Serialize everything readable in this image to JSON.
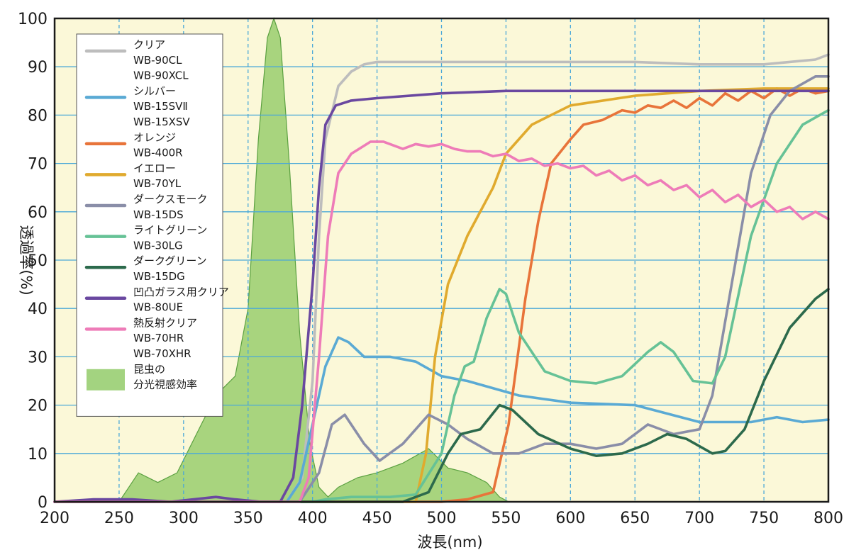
{
  "chart_data": {
    "type": "line",
    "xlabel": "波長(nm)",
    "ylabel": "透過率(%)",
    "xlim": [
      200,
      800
    ],
    "ylim": [
      0,
      100
    ],
    "xticks": [
      200,
      250,
      300,
      350,
      400,
      450,
      500,
      550,
      600,
      650,
      700,
      750,
      800
    ],
    "yticks": [
      0,
      10,
      20,
      30,
      40,
      50,
      60,
      70,
      80,
      90,
      100
    ],
    "grid": true,
    "legend_position": "top-left",
    "background_color": "#fbf8d8",
    "grid_color": "#4aa8d8",
    "area": {
      "name": [
        "昆虫の",
        "分光視感効率"
      ],
      "color": "#8cc860",
      "x": [
        200,
        250,
        255,
        265,
        280,
        295,
        310,
        325,
        340,
        350,
        358,
        365,
        370,
        375,
        382,
        390,
        398,
        405,
        412,
        420,
        435,
        450,
        470,
        490,
        505,
        520,
        535,
        545,
        552,
        560,
        800
      ],
      "y": [
        0,
        0,
        2,
        6,
        4,
        6,
        14,
        22,
        26,
        40,
        75,
        96,
        100,
        96,
        70,
        35,
        12,
        3,
        1,
        3,
        5,
        6,
        8,
        11,
        7,
        6,
        4,
        1,
        0,
        0,
        0
      ]
    },
    "series": [
      {
        "name": [
          "クリア",
          "WB-90CL",
          "WB-90XCL"
        ],
        "color": "#bdbdbd",
        "x": [
          200,
          380,
          392,
          400,
          405,
          410,
          420,
          430,
          440,
          450,
          480,
          550,
          650,
          700,
          750,
          790,
          800
        ],
        "y": [
          0,
          0,
          5,
          25,
          55,
          75,
          86,
          89,
          90.5,
          91,
          91,
          91,
          91,
          90.5,
          90.5,
          91.5,
          92.5
        ]
      },
      {
        "name": [
          "シルバー",
          "WB-15SVⅡ",
          "WB-15XSV"
        ],
        "color": "#5aaad4",
        "x": [
          200,
          380,
          390,
          400,
          410,
          420,
          428,
          440,
          460,
          480,
          500,
          520,
          560,
          600,
          650,
          700,
          740,
          760,
          780,
          800
        ],
        "y": [
          0,
          0,
          4,
          16,
          28,
          34,
          33,
          30,
          30,
          29,
          26,
          25,
          22,
          20.5,
          20,
          16.5,
          16.5,
          17.5,
          16.5,
          17
        ]
      },
      {
        "name": [
          "オレンジ",
          "WB-400R"
        ],
        "color": "#e8743a",
        "x": [
          200,
          500,
          520,
          540,
          552,
          565,
          575,
          585,
          600,
          610,
          625,
          640,
          650,
          660,
          670,
          680,
          690,
          700,
          710,
          720,
          730,
          740,
          750,
          760,
          770,
          780,
          790,
          800
        ],
        "y": [
          0,
          0,
          0.5,
          2,
          16,
          42,
          58,
          70,
          75,
          78,
          79,
          81,
          80.5,
          82,
          81.5,
          83,
          81.5,
          83.5,
          82,
          84.5,
          83,
          85,
          83.5,
          85.5,
          84,
          85.5,
          84.5,
          85
        ]
      },
      {
        "name": [
          "イエロー",
          "WB-70YL"
        ],
        "color": "#e0aa2e",
        "x": [
          200,
          480,
          488,
          495,
          505,
          520,
          540,
          550,
          570,
          600,
          650,
          700,
          750,
          800
        ],
        "y": [
          0,
          0,
          10,
          30,
          45,
          55,
          65,
          72,
          78,
          82,
          84,
          85,
          85.5,
          85.5
        ]
      },
      {
        "name": [
          "ダークスモーク",
          "WB-15DS"
        ],
        "color": "#8a8ea8",
        "x": [
          200,
          390,
          405,
          415,
          425,
          440,
          452,
          470,
          490,
          505,
          520,
          540,
          560,
          580,
          600,
          620,
          640,
          660,
          680,
          700,
          710,
          725,
          740,
          755,
          770,
          790,
          800
        ],
        "y": [
          0,
          0,
          6,
          16,
          18,
          12,
          8.5,
          12,
          18,
          16,
          13,
          10,
          10,
          12,
          12,
          11,
          12,
          16,
          14,
          15,
          22,
          45,
          68,
          80,
          85,
          88,
          88
        ]
      },
      {
        "name": [
          "ライトグリーン",
          "WB-30LG"
        ],
        "color": "#66c296",
        "x": [
          200,
          400,
          410,
          430,
          460,
          480,
          500,
          510,
          518,
          525,
          535,
          545,
          550,
          560,
          580,
          600,
          620,
          640,
          660,
          670,
          680,
          695,
          710,
          720,
          740,
          760,
          780,
          800
        ],
        "y": [
          0,
          0,
          0.5,
          1,
          1,
          1.5,
          10,
          22,
          28,
          29,
          38,
          44,
          43,
          35,
          27,
          25,
          24.5,
          26,
          31,
          33,
          31,
          25,
          24.5,
          30,
          55,
          70,
          78,
          81
        ]
      },
      {
        "name": [
          "ダークグリーン",
          "WB-15DG"
        ],
        "color": "#2c6a4c",
        "x": [
          200,
          470,
          490,
          505,
          515,
          530,
          545,
          555,
          575,
          600,
          620,
          640,
          660,
          675,
          690,
          710,
          720,
          735,
          750,
          770,
          790,
          800
        ],
        "y": [
          0,
          0,
          2,
          10,
          14,
          15,
          20,
          19,
          14,
          11,
          9.5,
          10,
          12,
          14,
          13,
          10,
          10.5,
          15,
          25,
          36,
          42,
          44
        ]
      },
      {
        "name": [
          "凹凸ガラス用クリア",
          "WB-80UE"
        ],
        "color": "#6a48a0",
        "x": [
          200,
          230,
          260,
          290,
          325,
          340,
          360,
          375,
          385,
          392,
          400,
          405,
          410,
          418,
          430,
          450,
          500,
          550,
          600,
          650,
          700,
          750,
          800
        ],
        "y": [
          0,
          0.5,
          0.5,
          0,
          1,
          0.5,
          0,
          0,
          5,
          20,
          45,
          65,
          78,
          82,
          83,
          83.5,
          84.5,
          85,
          85,
          85,
          85,
          85,
          85
        ]
      },
      {
        "name": [
          "熱反射クリア",
          "WB-70HR",
          "WB-70XHR"
        ],
        "color": "#ee7cb8",
        "x": [
          200,
          390,
          397,
          405,
          412,
          420,
          430,
          445,
          455,
          470,
          480,
          490,
          500,
          510,
          520,
          530,
          540,
          550,
          560,
          570,
          580,
          590,
          600,
          610,
          620,
          630,
          640,
          650,
          660,
          670,
          680,
          690,
          700,
          710,
          720,
          730,
          740,
          750,
          760,
          770,
          780,
          790,
          800
        ],
        "y": [
          0,
          0,
          5,
          30,
          55,
          68,
          72,
          74.5,
          74.5,
          73,
          74,
          73.5,
          74,
          73,
          72.5,
          72.5,
          71.5,
          72,
          70.5,
          71,
          69.5,
          70,
          69,
          69.5,
          67.5,
          68.5,
          66.5,
          67.5,
          65.5,
          66.5,
          64.5,
          65.5,
          63,
          64.5,
          62,
          63.5,
          61,
          62.5,
          60,
          61,
          58.5,
          60,
          58.5
        ]
      }
    ]
  }
}
